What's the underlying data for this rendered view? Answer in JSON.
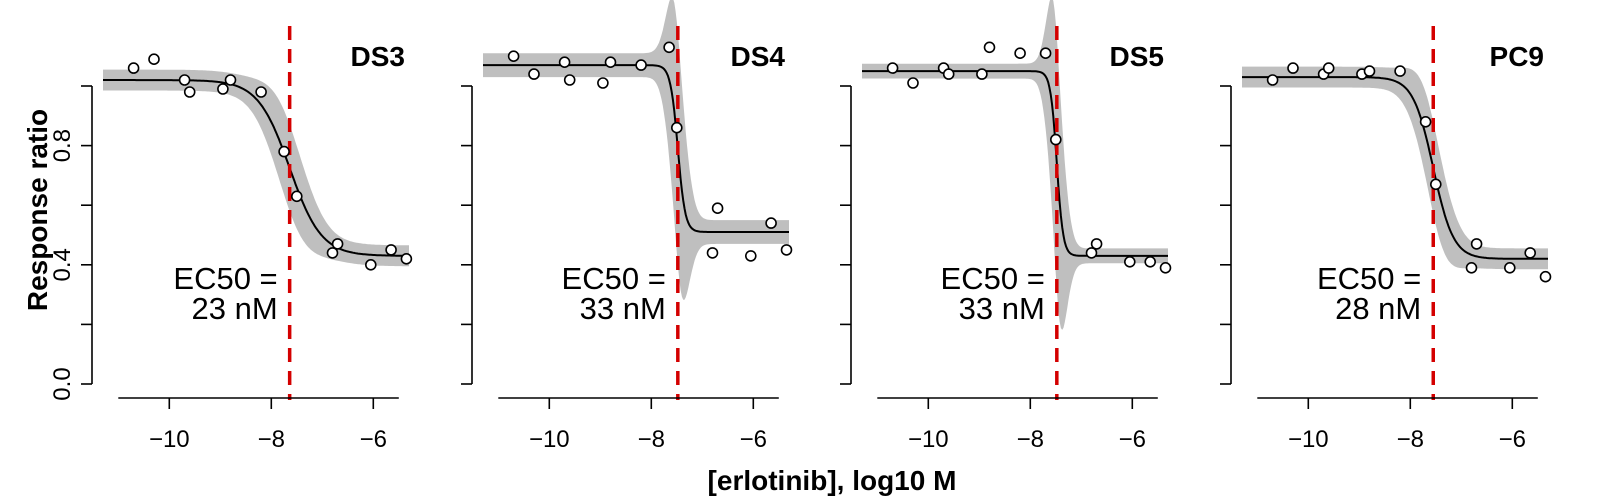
{
  "chart_data": {
    "type": "scatter",
    "y_axis_title": "Response ratio",
    "x_axis_title": "[erlotinib], log10 M",
    "xlim": [
      -11.3,
      -5.3
    ],
    "ylim": [
      -0.1,
      1.25
    ],
    "x_ticks": [
      -10,
      -8,
      -6
    ],
    "x_tick_labels": [
      "−10",
      "−8",
      "−6"
    ],
    "y_ticks": [
      0.0,
      0.2,
      0.4,
      0.6,
      0.8,
      1.0
    ],
    "y_tick_labels": [
      "0.0",
      "",
      "0.4",
      "",
      "0.8",
      ""
    ],
    "ec50_line_color": "#d40000",
    "band_color": "#bfbfbf",
    "panels": [
      {
        "title": "DS3",
        "ec50_label": "EC50 =",
        "ec50_value_label": "23 nM",
        "log_ec50": -7.64,
        "top": 1.02,
        "bottom": 0.43,
        "hill": 1.4,
        "band_halfwidth": 0.035,
        "band_center_halfwidth": 0.11,
        "points": [
          {
            "x": -10.7,
            "y": 1.06
          },
          {
            "x": -10.3,
            "y": 1.09
          },
          {
            "x": -9.7,
            "y": 1.02
          },
          {
            "x": -9.6,
            "y": 0.98
          },
          {
            "x": -8.95,
            "y": 0.99
          },
          {
            "x": -8.8,
            "y": 1.02
          },
          {
            "x": -8.2,
            "y": 0.98
          },
          {
            "x": -7.75,
            "y": 0.78
          },
          {
            "x": -7.5,
            "y": 0.63
          },
          {
            "x": -6.8,
            "y": 0.44
          },
          {
            "x": -6.7,
            "y": 0.47
          },
          {
            "x": -6.05,
            "y": 0.4
          },
          {
            "x": -5.65,
            "y": 0.45
          },
          {
            "x": -5.35,
            "y": 0.42
          }
        ]
      },
      {
        "title": "DS4",
        "ec50_label": "EC50 =",
        "ec50_value_label": "33 nM",
        "log_ec50": -7.48,
        "top": 1.07,
        "bottom": 0.51,
        "hill": 6,
        "band_halfwidth": 0.04,
        "band_center_halfwidth": 0.35,
        "points": [
          {
            "x": -10.7,
            "y": 1.1
          },
          {
            "x": -10.3,
            "y": 1.04
          },
          {
            "x": -9.7,
            "y": 1.08
          },
          {
            "x": -9.6,
            "y": 1.02
          },
          {
            "x": -8.95,
            "y": 1.01
          },
          {
            "x": -8.8,
            "y": 1.08
          },
          {
            "x": -8.2,
            "y": 1.07
          },
          {
            "x": -7.65,
            "y": 1.13
          },
          {
            "x": -7.5,
            "y": 0.86
          },
          {
            "x": -6.8,
            "y": 0.44
          },
          {
            "x": -6.7,
            "y": 0.59
          },
          {
            "x": -6.05,
            "y": 0.43
          },
          {
            "x": -5.65,
            "y": 0.54
          },
          {
            "x": -5.35,
            "y": 0.45
          }
        ]
      },
      {
        "title": "DS5",
        "ec50_label": "EC50 =",
        "ec50_value_label": "33 nM",
        "log_ec50": -7.48,
        "top": 1.05,
        "bottom": 0.43,
        "hill": 7,
        "band_halfwidth": 0.025,
        "band_center_halfwidth": 0.4,
        "points": [
          {
            "x": -10.7,
            "y": 1.06
          },
          {
            "x": -10.3,
            "y": 1.01
          },
          {
            "x": -9.7,
            "y": 1.06
          },
          {
            "x": -9.6,
            "y": 1.04
          },
          {
            "x": -8.95,
            "y": 1.04
          },
          {
            "x": -8.8,
            "y": 1.13
          },
          {
            "x": -8.2,
            "y": 1.11
          },
          {
            "x": -7.7,
            "y": 1.11
          },
          {
            "x": -7.5,
            "y": 0.82
          },
          {
            "x": -6.8,
            "y": 0.44
          },
          {
            "x": -6.7,
            "y": 0.47
          },
          {
            "x": -6.05,
            "y": 0.41
          },
          {
            "x": -5.65,
            "y": 0.41
          },
          {
            "x": -5.35,
            "y": 0.39
          }
        ]
      },
      {
        "title": "PC9",
        "ec50_label": "EC50 =",
        "ec50_value_label": "28 nM",
        "log_ec50": -7.55,
        "top": 1.03,
        "bottom": 0.42,
        "hill": 2.2,
        "band_halfwidth": 0.035,
        "band_center_halfwidth": 0.12,
        "points": [
          {
            "x": -10.7,
            "y": 1.02
          },
          {
            "x": -10.3,
            "y": 1.06
          },
          {
            "x": -9.7,
            "y": 1.04
          },
          {
            "x": -9.6,
            "y": 1.06
          },
          {
            "x": -8.95,
            "y": 1.04
          },
          {
            "x": -8.8,
            "y": 1.05
          },
          {
            "x": -8.2,
            "y": 1.05
          },
          {
            "x": -7.7,
            "y": 0.88
          },
          {
            "x": -7.5,
            "y": 0.67
          },
          {
            "x": -6.8,
            "y": 0.39
          },
          {
            "x": -6.7,
            "y": 0.47
          },
          {
            "x": -6.05,
            "y": 0.39
          },
          {
            "x": -5.65,
            "y": 0.44
          },
          {
            "x": -5.35,
            "y": 0.36
          }
        ]
      }
    ]
  }
}
